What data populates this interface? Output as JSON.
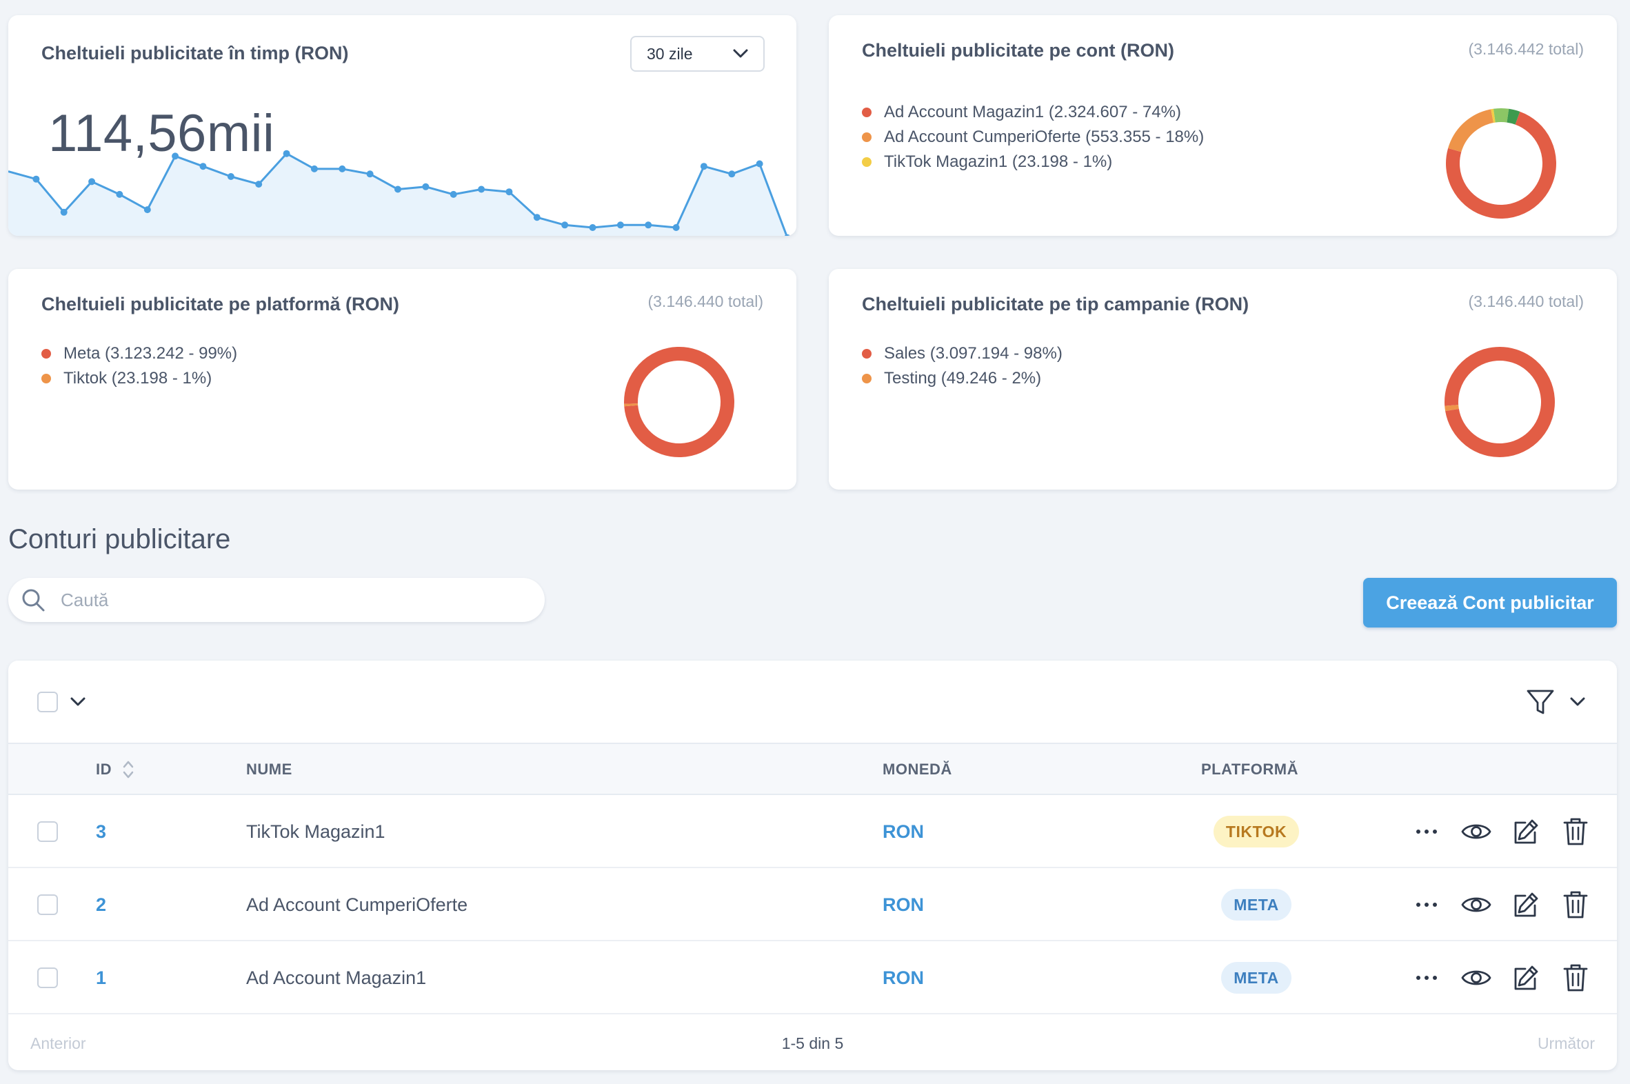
{
  "charts": {
    "time": {
      "title": "Cheltuieli publicitate în timp (RON)",
      "range_select": "30 zile",
      "big_value": "114,56mii",
      "line_color": "#4a9fe0",
      "fill_color": "#e8f3fc"
    },
    "account": {
      "title": "Cheltuieli publicitate pe cont (RON)",
      "total": "(3.146.442 total)",
      "legend": [
        {
          "label": "Ad Account Magazin1 (2.324.607 - 74%)",
          "color": "#e25d45"
        },
        {
          "label": "Ad Account CumperiOferte (553.355 - 18%)",
          "color": "#ee9449"
        },
        {
          "label": "TikTok Magazin1 (23.198 - 1%)",
          "color": "#f3cd46"
        }
      ]
    },
    "platform": {
      "title": "Cheltuieli publicitate pe platformă (RON)",
      "total": "(3.146.440 total)",
      "legend": [
        {
          "label": "Meta (3.123.242 - 99%)",
          "color": "#e25d45"
        },
        {
          "label": "Tiktok (23.198 - 1%)",
          "color": "#ee9449"
        }
      ]
    },
    "campaign": {
      "title": "Cheltuieli publicitate pe tip campanie (RON)",
      "total": "(3.146.440 total)",
      "legend": [
        {
          "label": "Sales (3.097.194 - 98%)",
          "color": "#e25d45"
        },
        {
          "label": "Testing (49.246 - 2%)",
          "color": "#ee9449"
        }
      ]
    }
  },
  "chart_data": [
    {
      "type": "area",
      "title": "Cheltuieli publicitate în timp (RON)",
      "y": [
        62,
        59,
        46,
        58,
        53,
        47,
        68,
        64,
        60,
        57,
        69,
        63,
        63,
        61,
        55,
        56,
        53,
        55,
        54,
        44,
        41,
        40,
        41,
        41,
        40,
        64,
        61,
        65,
        36
      ],
      "ylim": [
        30,
        80
      ],
      "grid": false
    },
    {
      "type": "pie",
      "title": "Cheltuieli publicitate pe cont (RON)",
      "labels": [
        "Ad Account Magazin1",
        "Ad Account CumperiOferte",
        "TikTok Magazin1",
        "",
        ""
      ],
      "values": [
        2324607,
        553355,
        23198,
        140000,
        105282
      ],
      "colors": [
        "#e25d45",
        "#ee9449",
        "#f3cd46",
        "#8cc665",
        "#3e9a4e"
      ]
    },
    {
      "type": "pie",
      "title": "Cheltuieli publicitate pe platformă (RON)",
      "labels": [
        "Meta",
        "Tiktok"
      ],
      "values": [
        3123242,
        23198
      ],
      "colors": [
        "#e25d45",
        "#ee9449"
      ]
    },
    {
      "type": "pie",
      "title": "Cheltuieli publicitate pe tip campanie (RON)",
      "labels": [
        "Sales",
        "Testing"
      ],
      "values": [
        3097194,
        49246
      ],
      "colors": [
        "#e25d45",
        "#ee9449"
      ]
    }
  ],
  "section": {
    "title": "Conturi publicitare",
    "search_placeholder": "Caută",
    "create_button": "Creează Cont publicitar"
  },
  "table": {
    "headers": {
      "id": "ID",
      "name": "NUME",
      "currency": "MONEDĂ",
      "platform": "PLATFORMĂ"
    },
    "rows": [
      {
        "id": "3",
        "name": "TikTok Magazin1",
        "currency": "RON",
        "platform": "TIKTOK",
        "platform_kind": "tiktok"
      },
      {
        "id": "2",
        "name": "Ad Account CumperiOferte",
        "currency": "RON",
        "platform": "META",
        "platform_kind": "meta"
      },
      {
        "id": "1",
        "name": "Ad Account Magazin1",
        "currency": "RON",
        "platform": "META",
        "platform_kind": "meta"
      }
    ],
    "pagination": {
      "prev": "Anterior",
      "info": "1-5 din 5",
      "next": "Următor"
    }
  },
  "icons": {
    "search": "search-icon",
    "chevron": "chevron-down-icon",
    "filter": "filter-icon",
    "sort": "sort-icon",
    "more": "more-icon",
    "view": "eye-icon",
    "edit": "edit-icon",
    "delete": "trash-icon"
  }
}
